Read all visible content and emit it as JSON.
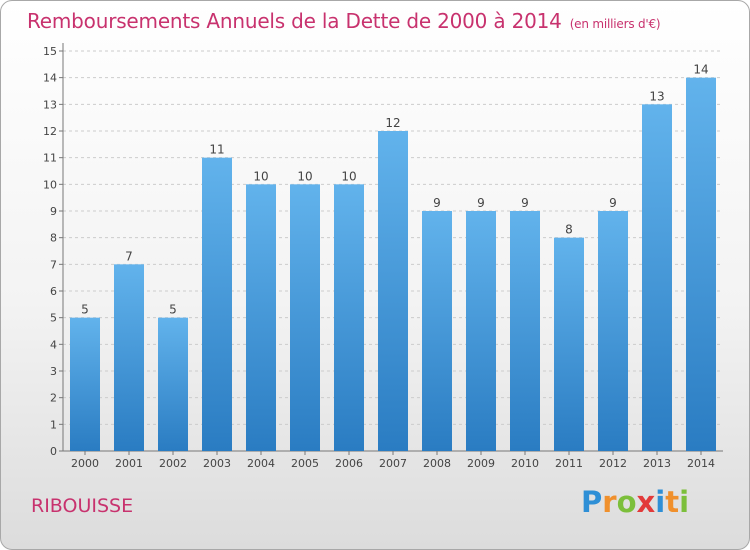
{
  "title": "Remboursements Annuels de la Dette de 2000 à 2014",
  "unit": "(en milliers d'€)",
  "commune": "RIBOUISSE",
  "logo": {
    "letters": [
      "P",
      "r",
      "o",
      "x",
      "i",
      "t",
      "i"
    ],
    "colors": [
      "#2e8fd6",
      "#f0902c",
      "#7cbf3b",
      "#e23a3a",
      "#2e8fd6",
      "#f0902c",
      "#7cbf3b"
    ]
  },
  "colors": {
    "title": "#c8326e",
    "bar_top": "#62b3ec",
    "bar_bottom": "#2a7cc2",
    "grid": "#cccccc"
  },
  "chart_data": {
    "type": "bar",
    "categories": [
      "2000",
      "2001",
      "2002",
      "2003",
      "2004",
      "2005",
      "2006",
      "2007",
      "2008",
      "2009",
      "2010",
      "2011",
      "2012",
      "2013",
      "2014"
    ],
    "values": [
      5,
      7,
      5,
      11,
      10,
      10,
      10,
      12,
      9,
      9,
      9,
      8,
      9,
      13,
      14
    ],
    "ylim": [
      0,
      15
    ],
    "yticks": [
      0,
      1,
      2,
      3,
      4,
      5,
      6,
      7,
      8,
      9,
      10,
      11,
      12,
      13,
      14,
      15
    ],
    "grid": true,
    "data_labels": true
  }
}
